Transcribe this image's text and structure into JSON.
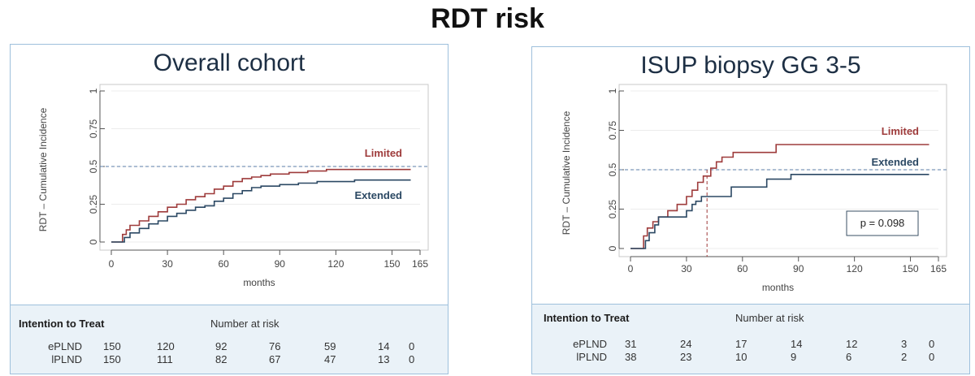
{
  "title": "RDT risk",
  "panels": [
    {
      "title": "Overall cohort",
      "risk_table": {
        "header": "Intention to Treat",
        "subheader": "Number at risk",
        "rows": [
          {
            "label": "ePLND",
            "values": [
              "150",
              "120",
              "92",
              "76",
              "59",
              "14",
              "0"
            ]
          },
          {
            "label": "lPLND",
            "values": [
              "150",
              "111",
              "82",
              "67",
              "47",
              "13",
              "0"
            ]
          }
        ]
      }
    },
    {
      "title": "ISUP biopsy GG 3-5",
      "risk_table": {
        "header": "Intention to Treat",
        "subheader": "Number at risk",
        "rows": [
          {
            "label": "ePLND",
            "values": [
              "31",
              "24",
              "17",
              "14",
              "12",
              "3",
              "0"
            ]
          },
          {
            "label": "lPLND",
            "values": [
              "38",
              "23",
              "10",
              "9",
              "6",
              "2",
              "0"
            ]
          }
        ]
      }
    }
  ],
  "chart_data": [
    {
      "type": "line",
      "step": true,
      "ylabel": "RDT – Cumulative Incidence",
      "xlabel": "months",
      "xlim": [
        0,
        165
      ],
      "ylim": [
        0,
        1
      ],
      "xticks": [
        0,
        30,
        60,
        90,
        120,
        150,
        165
      ],
      "yticks": [
        0,
        0.25,
        0.5,
        0.75,
        1
      ],
      "ytick_labels": [
        "0",
        "0.25",
        "0.5",
        "0.75",
        "1"
      ],
      "reference_line": {
        "y": 0.5,
        "style": "dashed"
      },
      "annotations": [],
      "series": [
        {
          "name": "Limited",
          "color": "#9e3b3b",
          "points": [
            [
              0,
              0
            ],
            [
              5,
              0
            ],
            [
              6,
              0.05
            ],
            [
              8,
              0.08
            ],
            [
              10,
              0.11
            ],
            [
              15,
              0.14
            ],
            [
              20,
              0.17
            ],
            [
              25,
              0.2
            ],
            [
              30,
              0.23
            ],
            [
              35,
              0.25
            ],
            [
              40,
              0.28
            ],
            [
              45,
              0.3
            ],
            [
              50,
              0.32
            ],
            [
              55,
              0.35
            ],
            [
              60,
              0.37
            ],
            [
              65,
              0.4
            ],
            [
              70,
              0.42
            ],
            [
              75,
              0.43
            ],
            [
              80,
              0.44
            ],
            [
              85,
              0.45
            ],
            [
              95,
              0.46
            ],
            [
              105,
              0.47
            ],
            [
              115,
              0.48
            ],
            [
              160,
              0.48
            ]
          ]
        },
        {
          "name": "Extended",
          "color": "#2b4863",
          "points": [
            [
              0,
              0
            ],
            [
              5,
              0
            ],
            [
              7,
              0.03
            ],
            [
              10,
              0.06
            ],
            [
              15,
              0.09
            ],
            [
              20,
              0.12
            ],
            [
              25,
              0.14
            ],
            [
              30,
              0.17
            ],
            [
              35,
              0.19
            ],
            [
              40,
              0.21
            ],
            [
              45,
              0.23
            ],
            [
              50,
              0.24
            ],
            [
              55,
              0.27
            ],
            [
              60,
              0.29
            ],
            [
              65,
              0.32
            ],
            [
              70,
              0.34
            ],
            [
              75,
              0.36
            ],
            [
              80,
              0.37
            ],
            [
              90,
              0.38
            ],
            [
              100,
              0.39
            ],
            [
              110,
              0.4
            ],
            [
              130,
              0.41
            ],
            [
              160,
              0.41
            ]
          ]
        }
      ],
      "legend": {
        "placement": "inline"
      }
    },
    {
      "type": "line",
      "step": true,
      "ylabel": "RDT – Cumulative Incidence",
      "xlabel": "months",
      "xlim": [
        0,
        165
      ],
      "ylim": [
        0,
        1
      ],
      "xticks": [
        0,
        30,
        60,
        90,
        120,
        150,
        165
      ],
      "yticks": [
        0,
        0.25,
        0.5,
        0.75,
        1
      ],
      "ytick_labels": [
        "0",
        "0.25",
        "0.5",
        "0.75",
        "1"
      ],
      "reference_line": {
        "y": 0.5,
        "style": "dashed"
      },
      "vertical_reference": {
        "x": 41,
        "style": "dashed"
      },
      "annotations": [
        {
          "text": "p = 0.098"
        }
      ],
      "series": [
        {
          "name": "Limited",
          "color": "#9e3b3b",
          "points": [
            [
              0,
              0
            ],
            [
              5,
              0
            ],
            [
              7,
              0.08
            ],
            [
              9,
              0.13
            ],
            [
              12,
              0.17
            ],
            [
              15,
              0.2
            ],
            [
              20,
              0.24
            ],
            [
              25,
              0.28
            ],
            [
              30,
              0.33
            ],
            [
              33,
              0.37
            ],
            [
              36,
              0.42
            ],
            [
              39,
              0.46
            ],
            [
              43,
              0.51
            ],
            [
              46,
              0.55
            ],
            [
              49,
              0.58
            ],
            [
              55,
              0.61
            ],
            [
              78,
              0.66
            ],
            [
              160,
              0.66
            ]
          ]
        },
        {
          "name": "Extended",
          "color": "#2b4863",
          "points": [
            [
              0,
              0
            ],
            [
              7,
              0
            ],
            [
              8,
              0.05
            ],
            [
              10,
              0.1
            ],
            [
              13,
              0.15
            ],
            [
              15,
              0.2
            ],
            [
              30,
              0.24
            ],
            [
              33,
              0.28
            ],
            [
              35,
              0.3
            ],
            [
              38,
              0.33
            ],
            [
              45,
              0.33
            ],
            [
              54,
              0.39
            ],
            [
              73,
              0.44
            ],
            [
              86,
              0.47
            ],
            [
              160,
              0.47
            ]
          ]
        }
      ],
      "legend": {
        "placement": "inline"
      }
    }
  ]
}
